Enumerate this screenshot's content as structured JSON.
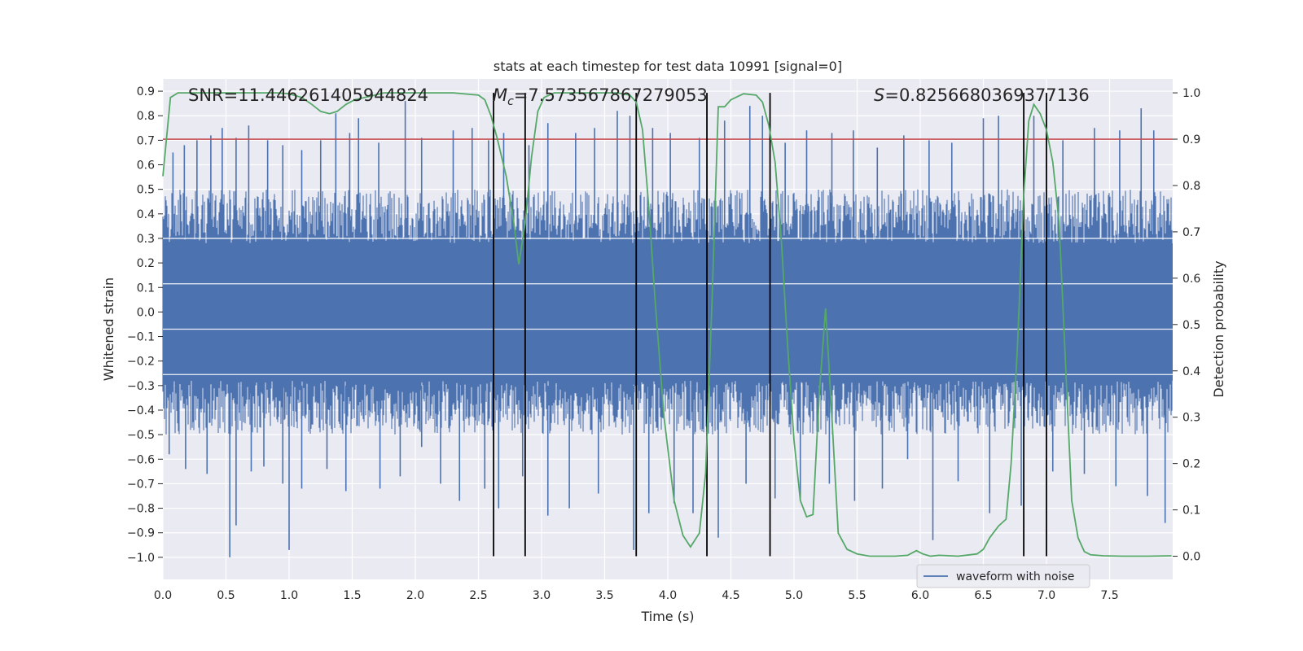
{
  "chart_data": {
    "type": "line",
    "title": "stats at each timestep for test data 10991 [signal=0]",
    "xlabel": "Time (s)",
    "ylabel_left": "Whitened strain",
    "ylabel_right": "Detection probability",
    "xlim": [
      0.0,
      8.0
    ],
    "ylim_left": [
      -1.09,
      0.95
    ],
    "ylim_right": [
      -0.05,
      1.03
    ],
    "x_ticks": [
      "0.0",
      "0.5",
      "1.0",
      "1.5",
      "2.0",
      "2.5",
      "3.0",
      "3.5",
      "4.0",
      "4.5",
      "5.0",
      "5.5",
      "6.0",
      "6.5",
      "7.0",
      "7.5"
    ],
    "y_left_ticks": [
      "0.9",
      "0.8",
      "0.7",
      "0.6",
      "0.5",
      "0.4",
      "0.3",
      "0.2",
      "0.1",
      "0.0",
      "−0.1",
      "−0.2",
      "−0.3",
      "−0.4",
      "−0.5",
      "−0.6",
      "−0.7",
      "−0.8",
      "−0.9",
      "−1.0"
    ],
    "y_right_ticks": [
      "0.0",
      "0.1",
      "0.2",
      "0.3",
      "0.4",
      "0.5",
      "0.6",
      "0.7",
      "0.8",
      "0.9",
      "1.0"
    ],
    "annotations": {
      "snr": "SNR=11.446261405944824",
      "mc_symbol": "M",
      "mc_sub": "c",
      "mc_value": "=7.573567867279053",
      "s_symbol": "S",
      "s_value": "=0.8256680369377136"
    },
    "threshold": {
      "value": 0.9,
      "color": "#c44e52"
    },
    "vertical_markers": [
      2.62,
      2.87,
      3.75,
      4.31,
      4.81,
      6.82,
      7.0
    ],
    "waveform": {
      "name": "waveform with noise",
      "color": "#4c72b0",
      "core_amplitude": 0.28,
      "peaks": [
        {
          "t": 0.08,
          "v": 0.65
        },
        {
          "t": 0.17,
          "v": 0.68
        },
        {
          "t": 0.27,
          "v": 0.7
        },
        {
          "t": 0.38,
          "v": 0.72
        },
        {
          "t": 0.47,
          "v": 0.75
        },
        {
          "t": 0.58,
          "v": 0.71
        },
        {
          "t": 0.68,
          "v": 0.76
        },
        {
          "t": 0.83,
          "v": 0.7
        },
        {
          "t": 0.95,
          "v": 0.68
        },
        {
          "t": 1.1,
          "v": 0.66
        },
        {
          "t": 1.25,
          "v": 0.7
        },
        {
          "t": 1.37,
          "v": 0.81
        },
        {
          "t": 1.48,
          "v": 0.73
        },
        {
          "t": 1.55,
          "v": 0.79
        },
        {
          "t": 1.71,
          "v": 0.69
        },
        {
          "t": 1.92,
          "v": 0.86
        },
        {
          "t": 2.05,
          "v": 0.71
        },
        {
          "t": 2.3,
          "v": 0.74
        },
        {
          "t": 2.45,
          "v": 0.75
        },
        {
          "t": 2.58,
          "v": 0.7
        },
        {
          "t": 2.7,
          "v": 0.73
        },
        {
          "t": 2.9,
          "v": 0.68
        },
        {
          "t": 3.05,
          "v": 0.77
        },
        {
          "t": 3.27,
          "v": 0.73
        },
        {
          "t": 3.42,
          "v": 0.75
        },
        {
          "t": 3.6,
          "v": 0.82
        },
        {
          "t": 3.7,
          "v": 0.8
        },
        {
          "t": 3.88,
          "v": 0.75
        },
        {
          "t": 4.02,
          "v": 0.73
        },
        {
          "t": 4.25,
          "v": 0.71
        },
        {
          "t": 4.45,
          "v": 0.78
        },
        {
          "t": 4.65,
          "v": 0.84
        },
        {
          "t": 4.75,
          "v": 0.8
        },
        {
          "t": 4.93,
          "v": 0.69
        },
        {
          "t": 5.1,
          "v": 0.74
        },
        {
          "t": 5.3,
          "v": 0.73
        },
        {
          "t": 5.47,
          "v": 0.74
        },
        {
          "t": 5.66,
          "v": 0.67
        },
        {
          "t": 5.87,
          "v": 0.72
        },
        {
          "t": 6.07,
          "v": 0.7
        },
        {
          "t": 6.25,
          "v": 0.69
        },
        {
          "t": 6.5,
          "v": 0.79
        },
        {
          "t": 6.62,
          "v": 0.8
        },
        {
          "t": 6.9,
          "v": 0.8
        },
        {
          "t": 7.13,
          "v": 0.7
        },
        {
          "t": 7.38,
          "v": 0.75
        },
        {
          "t": 7.58,
          "v": 0.74
        },
        {
          "t": 7.75,
          "v": 0.83
        },
        {
          "t": 7.85,
          "v": 0.74
        }
      ],
      "troughs": [
        {
          "t": 0.05,
          "v": -0.58
        },
        {
          "t": 0.18,
          "v": -0.64
        },
        {
          "t": 0.35,
          "v": -0.66
        },
        {
          "t": 0.53,
          "v": -1.0
        },
        {
          "t": 0.58,
          "v": -0.87
        },
        {
          "t": 0.7,
          "v": -0.65
        },
        {
          "t": 0.8,
          "v": -0.63
        },
        {
          "t": 0.95,
          "v": -0.7
        },
        {
          "t": 1.0,
          "v": -0.97
        },
        {
          "t": 1.1,
          "v": -0.72
        },
        {
          "t": 1.3,
          "v": -0.64
        },
        {
          "t": 1.45,
          "v": -0.73
        },
        {
          "t": 1.72,
          "v": -0.72
        },
        {
          "t": 1.88,
          "v": -0.67
        },
        {
          "t": 2.05,
          "v": -0.55
        },
        {
          "t": 2.2,
          "v": -0.7
        },
        {
          "t": 2.35,
          "v": -0.77
        },
        {
          "t": 2.55,
          "v": -0.72
        },
        {
          "t": 2.66,
          "v": -0.8
        },
        {
          "t": 2.85,
          "v": -0.67
        },
        {
          "t": 3.05,
          "v": -0.83
        },
        {
          "t": 3.22,
          "v": -0.8
        },
        {
          "t": 3.45,
          "v": -0.74
        },
        {
          "t": 3.73,
          "v": -0.97
        },
        {
          "t": 3.85,
          "v": -0.82
        },
        {
          "t": 4.05,
          "v": -0.78
        },
        {
          "t": 4.2,
          "v": -0.82
        },
        {
          "t": 4.4,
          "v": -0.92
        },
        {
          "t": 4.62,
          "v": -0.7
        },
        {
          "t": 4.85,
          "v": -0.76
        },
        {
          "t": 5.05,
          "v": -0.77
        },
        {
          "t": 5.28,
          "v": -0.7
        },
        {
          "t": 5.48,
          "v": -0.77
        },
        {
          "t": 5.7,
          "v": -0.72
        },
        {
          "t": 5.9,
          "v": -0.6
        },
        {
          "t": 6.1,
          "v": -0.93
        },
        {
          "t": 6.3,
          "v": -0.69
        },
        {
          "t": 6.55,
          "v": -0.82
        },
        {
          "t": 6.8,
          "v": -0.79
        },
        {
          "t": 7.05,
          "v": -0.65
        },
        {
          "t": 7.3,
          "v": -0.66
        },
        {
          "t": 7.55,
          "v": -0.71
        },
        {
          "t": 7.8,
          "v": -0.75
        },
        {
          "t": 7.94,
          "v": -0.86
        }
      ]
    },
    "detection_probability": {
      "color": "#55a868",
      "x": [
        0.0,
        0.06,
        0.12,
        0.2,
        0.35,
        0.5,
        0.65,
        0.8,
        0.9,
        1.0,
        1.1,
        1.18,
        1.25,
        1.32,
        1.38,
        1.45,
        1.52,
        1.6,
        1.68,
        1.75,
        1.85,
        1.95,
        2.1,
        2.3,
        2.5,
        2.55,
        2.6,
        2.65,
        2.72,
        2.78,
        2.82,
        2.87,
        2.92,
        2.97,
        3.02,
        3.1,
        3.2,
        3.4,
        3.6,
        3.7,
        3.75,
        3.8,
        3.85,
        3.9,
        3.97,
        4.05,
        4.12,
        4.18,
        4.25,
        4.3,
        4.35,
        4.4,
        4.45,
        4.5,
        4.6,
        4.7,
        4.75,
        4.8,
        4.85,
        4.9,
        4.95,
        5.0,
        5.05,
        5.1,
        5.15,
        5.2,
        5.25,
        5.3,
        5.35,
        5.42,
        5.5,
        5.6,
        5.7,
        5.8,
        5.9,
        5.97,
        6.02,
        6.08,
        6.15,
        6.3,
        6.45,
        6.5,
        6.55,
        6.62,
        6.68,
        6.72,
        6.77,
        6.82,
        6.86,
        6.9,
        6.95,
        7.0,
        7.05,
        7.1,
        7.15,
        7.2,
        7.25,
        7.3,
        7.35,
        7.45,
        7.6,
        7.8,
        7.99
      ],
      "y": [
        0.82,
        0.99,
        1.0,
        1.0,
        1.0,
        1.0,
        1.0,
        1.0,
        1.0,
        0.998,
        0.99,
        0.975,
        0.96,
        0.955,
        0.96,
        0.975,
        0.985,
        0.99,
        0.995,
        1.0,
        1.0,
        1.0,
        1.0,
        1.0,
        0.995,
        0.985,
        0.95,
        0.9,
        0.82,
        0.72,
        0.63,
        0.72,
        0.86,
        0.96,
        0.99,
        1.0,
        1.0,
        1.0,
        1.0,
        0.995,
        0.98,
        0.92,
        0.75,
        0.55,
        0.3,
        0.12,
        0.045,
        0.02,
        0.05,
        0.18,
        0.55,
        0.97,
        0.97,
        0.985,
        0.998,
        0.995,
        0.98,
        0.93,
        0.85,
        0.68,
        0.45,
        0.25,
        0.12,
        0.085,
        0.09,
        0.35,
        0.535,
        0.3,
        0.05,
        0.015,
        0.005,
        0.0,
        0.0,
        0.0,
        0.002,
        0.012,
        0.005,
        0.0,
        0.002,
        0.0,
        0.005,
        0.015,
        0.04,
        0.065,
        0.08,
        0.2,
        0.45,
        0.78,
        0.94,
        0.975,
        0.955,
        0.92,
        0.85,
        0.72,
        0.42,
        0.12,
        0.04,
        0.01,
        0.003,
        0.001,
        0.0,
        0.0,
        0.001
      ]
    },
    "legend": {
      "label": "waveform with noise",
      "position": "lower-right"
    }
  }
}
